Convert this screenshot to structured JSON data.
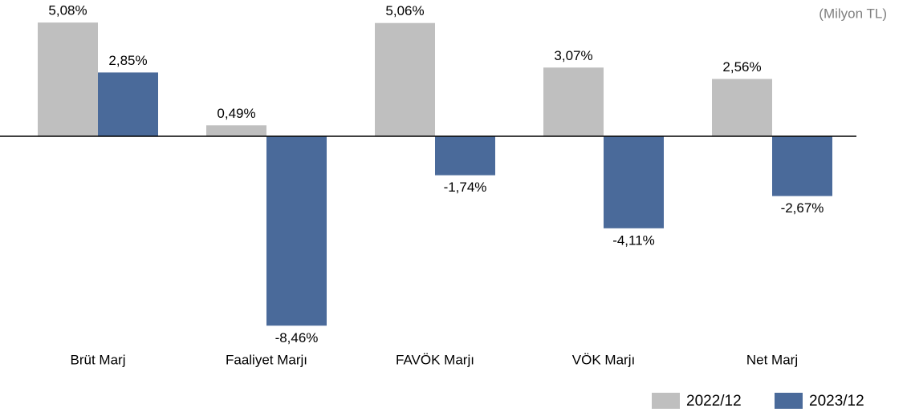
{
  "chart_data": {
    "type": "bar",
    "annotation": "(Milyon TL)",
    "categories": [
      "Brüt Marj",
      "Faaliyet Marjı",
      "FAVÖK Marjı",
      "VÖK Marjı",
      "Net Marj"
    ],
    "series": [
      {
        "name": "2022/12",
        "color": "#bfbfbf",
        "values": [
          5.08,
          0.49,
          5.06,
          3.07,
          2.56
        ],
        "value_labels": [
          "5,08%",
          "0,49%",
          "5,06%",
          "3,07%",
          "2,56%"
        ]
      },
      {
        "name": "2023/12",
        "color": "#4a6a9a",
        "values": [
          2.85,
          -8.46,
          -1.74,
          -4.11,
          -2.67
        ],
        "value_labels": [
          "2,85%",
          "-8,46%",
          "-1,74%",
          "-4,11%",
          "-2,67%"
        ]
      }
    ],
    "ylim": [
      -9,
      5.5
    ],
    "legend": "bottom-right"
  }
}
